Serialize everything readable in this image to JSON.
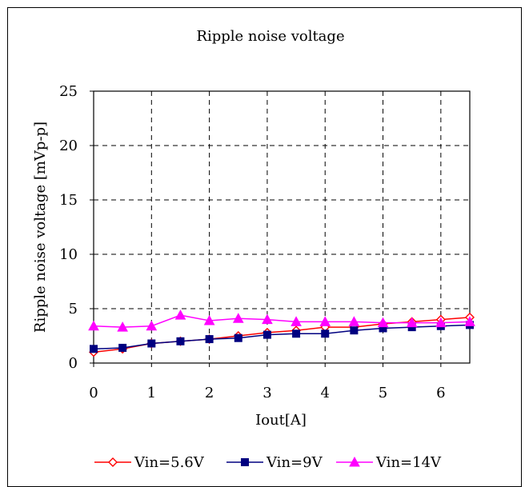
{
  "chart_data": {
    "type": "line",
    "title": "Ripple noise voltage",
    "xlabel": "Iout[A]",
    "ylabel": "Ripple noise voltage [mVp-p]",
    "xlim": [
      0,
      6.5
    ],
    "ylim": [
      0,
      25
    ],
    "xticks": [
      0,
      1,
      2,
      3,
      4,
      5,
      6
    ],
    "yticks": [
      0,
      5,
      10,
      15,
      20,
      25
    ],
    "grid": true,
    "legend_position": "bottom",
    "x": [
      0,
      0.5,
      1,
      1.5,
      2,
      2.5,
      3,
      3.5,
      4,
      4.5,
      5,
      5.5,
      6,
      6.5
    ],
    "series": [
      {
        "name": "Vin=5.6V",
        "color": "#ff0000",
        "marker": "diamond-open",
        "values": [
          1.0,
          1.3,
          1.8,
          2.0,
          2.2,
          2.5,
          2.8,
          3.0,
          3.3,
          3.3,
          3.6,
          3.8,
          4.0,
          4.2
        ]
      },
      {
        "name": "Vin=9V",
        "color": "#000080",
        "marker": "square",
        "values": [
          1.3,
          1.4,
          1.8,
          2.0,
          2.2,
          2.3,
          2.6,
          2.7,
          2.7,
          3.0,
          3.2,
          3.3,
          3.4,
          3.5
        ]
      },
      {
        "name": "Vin=14V",
        "color": "#ff00ff",
        "marker": "triangle",
        "values": [
          3.4,
          3.3,
          3.4,
          4.4,
          3.9,
          4.1,
          4.0,
          3.8,
          3.8,
          3.8,
          3.7,
          3.7,
          3.7,
          3.8
        ]
      }
    ]
  }
}
